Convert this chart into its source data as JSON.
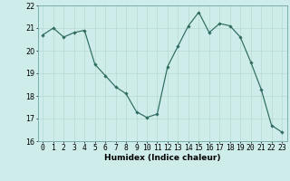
{
  "x": [
    0,
    1,
    2,
    3,
    4,
    5,
    6,
    7,
    8,
    9,
    10,
    11,
    12,
    13,
    14,
    15,
    16,
    17,
    18,
    19,
    20,
    21,
    22,
    23
  ],
  "y": [
    20.7,
    21.0,
    20.6,
    20.8,
    20.9,
    19.4,
    18.9,
    18.4,
    18.1,
    17.3,
    17.05,
    17.2,
    19.3,
    20.2,
    21.1,
    21.7,
    20.8,
    21.2,
    21.1,
    20.6,
    19.5,
    18.3,
    16.7,
    16.4
  ],
  "xlabel": "Humidex (Indice chaleur)",
  "ylim": [
    16,
    22
  ],
  "xlim": [
    -0.5,
    23.5
  ],
  "yticks": [
    16,
    17,
    18,
    19,
    20,
    21,
    22
  ],
  "xticks": [
    0,
    1,
    2,
    3,
    4,
    5,
    6,
    7,
    8,
    9,
    10,
    11,
    12,
    13,
    14,
    15,
    16,
    17,
    18,
    19,
    20,
    21,
    22,
    23
  ],
  "line_color": "#2e6b5e",
  "marker": "D",
  "marker_size": 1.8,
  "bg_color": "#ceecea",
  "grid_color_major": "#b8d8d4",
  "grid_color_minor": "#c8e8e4",
  "label_fontsize": 6.5,
  "tick_fontsize": 5.8
}
